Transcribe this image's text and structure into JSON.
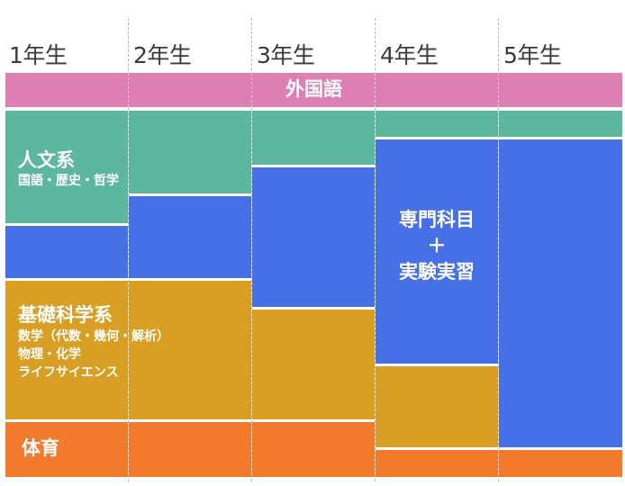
{
  "years": [
    "1年生",
    "2年生",
    "3年生",
    "4年生",
    "5年生"
  ],
  "foreign_language": "外国語",
  "humanities": {
    "title": "人文系",
    "subjects": "国語・歴史・哲学"
  },
  "basic_science": {
    "title": "基礎科学系",
    "line1": "数学（代数・幾何・解析）",
    "line2": "物理・化学",
    "line3": "ライフサイエンス"
  },
  "pe": "体育",
  "specialized": {
    "line1": "専門科目",
    "line2": "＋",
    "line3": "実験実習"
  },
  "colors": {
    "humanities": "#5db79e",
    "specialized": "#4570e6",
    "basic_science": "#d99e24",
    "pe": "#f17a2c",
    "foreign_language": "#de7fb3"
  }
}
